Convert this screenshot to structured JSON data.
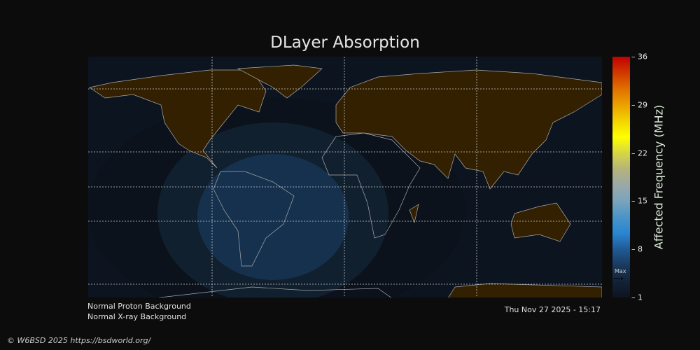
{
  "title": "DLayer Absorption",
  "colorbar": {
    "label": "Affected Frequency (MHz)",
    "ticks": [
      "36",
      "29",
      "22",
      "15",
      "8",
      "1"
    ],
    "range": [
      1,
      36
    ],
    "max_marker_label": "Max",
    "colors": [
      "#0d1420",
      "#142236",
      "#1a3a5e",
      "#1f5a94",
      "#2a86d0",
      "#4a94c8",
      "#7aa4bc",
      "#9aa8a8",
      "#b4b47a",
      "#d6d646",
      "#ffff00",
      "#f2d400",
      "#eca000",
      "#e07000",
      "#d03800",
      "#c00000"
    ]
  },
  "map_colors": {
    "land": "#332000",
    "coast": "#aaaaaa",
    "night": "#0c1420",
    "absorption_low": "#0f1b2b",
    "absorption_mid": "#13263b",
    "absorption_high": "#16324f"
  },
  "status": {
    "proton": "Normal Proton Background",
    "xray": "Normal X-ray Background",
    "timestamp": "Thu Nov 27 2025 - 15:17"
  },
  "credit": "© W6BSD 2025 https://bsdworld.org/"
}
